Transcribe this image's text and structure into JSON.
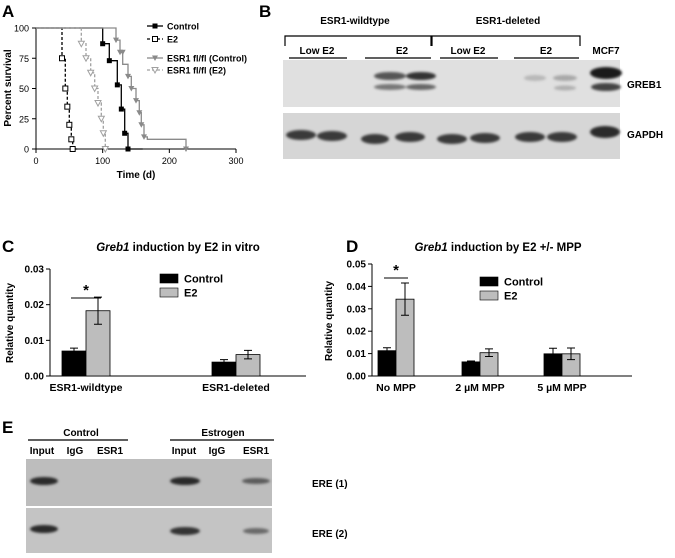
{
  "panels": {
    "A": {
      "letter": "A"
    },
    "B": {
      "letter": "B"
    },
    "C": {
      "letter": "C"
    },
    "D": {
      "letter": "D"
    },
    "E": {
      "letter": "E"
    }
  },
  "colors": {
    "control": "#000000",
    "e2": "#bdbdbd",
    "fl_control": "#8a8a8a",
    "fl_e2": "#a0a0a0",
    "blot_bg": "#dcdcdc",
    "gel_bg": "#bfbfbf"
  },
  "chart_data": [
    {
      "panel": "A",
      "type": "line",
      "xlabel": "Time (d)",
      "ylabel": "Percent survival",
      "xlim": [
        0,
        300
      ],
      "ylim": [
        0,
        100
      ],
      "xticks": [
        "0",
        "100",
        "200",
        "300"
      ],
      "yticks": [
        "0",
        "25",
        "50",
        "75",
        "100"
      ],
      "legend_position": "top-right",
      "series": [
        {
          "name": "Control",
          "style": "solid",
          "marker": "square-filled",
          "points": [
            [
              0,
              100
            ],
            [
              100,
              100
            ],
            [
              100,
              87
            ],
            [
              110,
              87
            ],
            [
              110,
              73
            ],
            [
              122,
              73
            ],
            [
              122,
              53
            ],
            [
              128,
              53
            ],
            [
              128,
              33
            ],
            [
              133,
              33
            ],
            [
              133,
              13
            ],
            [
              138,
              13
            ],
            [
              138,
              0
            ],
            [
              160,
              0
            ]
          ],
          "markers": [
            [
              100,
              87
            ],
            [
              110,
              73
            ],
            [
              122,
              53
            ],
            [
              128,
              33
            ],
            [
              133,
              13
            ],
            [
              138,
              0
            ]
          ]
        },
        {
          "name": "E2",
          "style": "dashed",
          "marker": "square-open",
          "points": [
            [
              0,
              100
            ],
            [
              39,
              100
            ],
            [
              39,
              75
            ],
            [
              44,
              75
            ],
            [
              44,
              50
            ],
            [
              47,
              50
            ],
            [
              47,
              35
            ],
            [
              50,
              35
            ],
            [
              50,
              20
            ],
            [
              53,
              20
            ],
            [
              53,
              8
            ],
            [
              55,
              8
            ],
            [
              55,
              0
            ],
            [
              62,
              0
            ]
          ],
          "markers": [
            [
              39,
              75
            ],
            [
              44,
              50
            ],
            [
              47,
              35
            ],
            [
              50,
              20
            ],
            [
              53,
              8
            ],
            [
              55,
              0
            ]
          ]
        },
        {
          "name": "ESR1 fl/fl (Control)",
          "style": "solid",
          "marker": "triangle-down",
          "points": [
            [
              0,
              100
            ],
            [
              120,
              100
            ],
            [
              120,
              90
            ],
            [
              126,
              90
            ],
            [
              126,
              80
            ],
            [
              130,
              80
            ],
            [
              130,
              70
            ],
            [
              138,
              70
            ],
            [
              138,
              60
            ],
            [
              143,
              60
            ],
            [
              143,
              50
            ],
            [
              150,
              50
            ],
            [
              150,
              40
            ],
            [
              155,
              40
            ],
            [
              155,
              30
            ],
            [
              158,
              30
            ],
            [
              158,
              20
            ],
            [
              162,
              20
            ],
            [
              162,
              10
            ],
            [
              167,
              10
            ],
            [
              167,
              8
            ],
            [
              225,
              8
            ],
            [
              225,
              0
            ]
          ],
          "markers": [
            [
              120,
              90
            ],
            [
              126,
              80
            ],
            [
              130,
              80
            ],
            [
              138,
              60
            ],
            [
              143,
              50
            ],
            [
              150,
              40
            ],
            [
              155,
              30
            ],
            [
              158,
              20
            ],
            [
              162,
              10
            ],
            [
              225,
              0
            ]
          ]
        },
        {
          "name": "ESR1 fl/fl (E2)",
          "style": "dashed",
          "marker": "triangle-down-open",
          "points": [
            [
              0,
              100
            ],
            [
              68,
              100
            ],
            [
              68,
              87
            ],
            [
              75,
              87
            ],
            [
              75,
              75
            ],
            [
              82,
              75
            ],
            [
              82,
              63
            ],
            [
              88,
              63
            ],
            [
              88,
              50
            ],
            [
              93,
              50
            ],
            [
              93,
              38
            ],
            [
              98,
              38
            ],
            [
              98,
              25
            ],
            [
              101,
              25
            ],
            [
              101,
              13
            ],
            [
              104,
              13
            ],
            [
              104,
              0
            ],
            [
              110,
              0
            ]
          ],
          "markers": [
            [
              68,
              87
            ],
            [
              75,
              75
            ],
            [
              82,
              63
            ],
            [
              88,
              50
            ],
            [
              93,
              38
            ],
            [
              98,
              25
            ],
            [
              101,
              13
            ],
            [
              104,
              0
            ]
          ]
        }
      ]
    },
    {
      "panel": "C",
      "type": "bar",
      "title": "Greb1 induction by E2 in vitro",
      "ylabel": "Relative quantity",
      "ylim": [
        0,
        0.03
      ],
      "yticks": [
        "0.00",
        "0.01",
        "0.02",
        "0.03"
      ],
      "categories": [
        "ESR1-wildtype",
        "ESR1-deleted"
      ],
      "series": [
        {
          "name": "Control",
          "values": [
            0.007,
            0.0039
          ],
          "errors": [
            0.0008,
            0.0007
          ]
        },
        {
          "name": "E2",
          "values": [
            0.0183,
            0.006
          ],
          "errors": [
            0.0038,
            0.0012
          ]
        }
      ],
      "significance": {
        "label": "*",
        "between": "ESR1-wildtype Control vs E2"
      }
    },
    {
      "panel": "D",
      "type": "bar",
      "title": "Greb1 induction by E2 +/- MPP",
      "ylabel": "Relative quantity",
      "ylim": [
        0,
        0.05
      ],
      "yticks": [
        "0.00",
        "0.01",
        "0.02",
        "0.03",
        "0.04",
        "0.05"
      ],
      "categories": [
        "No MPP",
        "2 µM MPP",
        "5 µM MPP"
      ],
      "series": [
        {
          "name": "Control",
          "values": [
            0.0113,
            0.0063,
            0.0099
          ],
          "errors": [
            0.0013,
            0.0004,
            0.0025
          ]
        },
        {
          "name": "E2",
          "values": [
            0.0343,
            0.0104,
            0.0099
          ],
          "errors": [
            0.0072,
            0.0017,
            0.0026
          ]
        }
      ],
      "significance": {
        "label": "*",
        "between": "No MPP Control vs E2"
      }
    }
  ],
  "panelB": {
    "groups": [
      "ESR1-wildtype",
      "ESR1-deleted"
    ],
    "lanes": [
      "Low E2",
      "E2",
      "Low E2",
      "E2",
      "MCF7"
    ],
    "rows": [
      "GREB1",
      "GAPDH"
    ]
  },
  "panelE": {
    "groups": [
      "Control",
      "Estrogen"
    ],
    "lanes": [
      "Input",
      "IgG",
      "ESR1",
      "Input",
      "IgG",
      "ESR1"
    ],
    "rows": [
      "ERE (1)",
      "ERE (2)"
    ]
  }
}
